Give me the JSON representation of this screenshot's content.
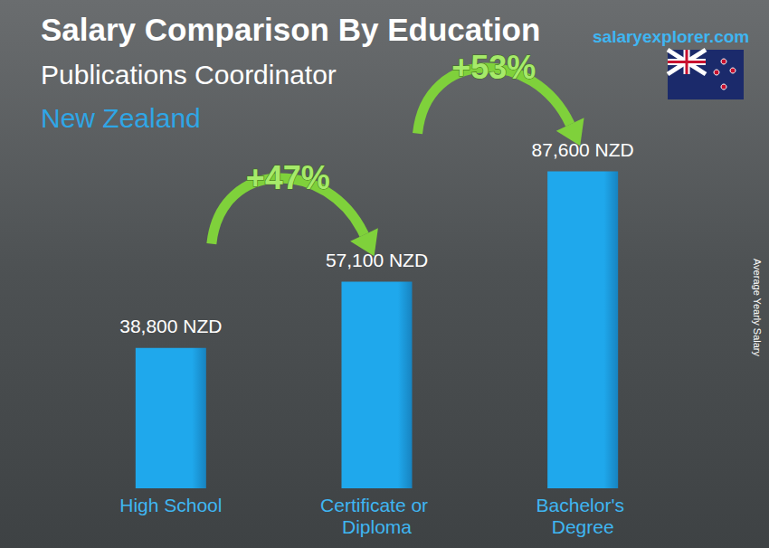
{
  "chart_data": {
    "type": "bar",
    "title": "Salary Comparison By Education",
    "subtitle": "Publications Coordinator",
    "location": "New Zealand",
    "source": "salaryexplorer.com",
    "ylabel": "Average Yearly Salary",
    "categories": [
      "High School",
      "Certificate or Diploma",
      "Bachelor's Degree"
    ],
    "values": [
      38800,
      57100,
      87600
    ],
    "value_labels": [
      "38,800 NZD",
      "57,100 NZD",
      "87,600 NZD"
    ],
    "color": "#1fa8ec",
    "ylim": [
      0,
      100000
    ],
    "yticks": [
      0,
      100000
    ],
    "grid": false,
    "data_labels": true,
    "tick_labels": "x",
    "annotations": [
      {
        "text": "+47%",
        "from": "High School",
        "to": "Certificate or Diploma"
      },
      {
        "text": "+53%",
        "from": "Certificate or Diploma",
        "to": "Bachelor's Degree"
      }
    ]
  }
}
